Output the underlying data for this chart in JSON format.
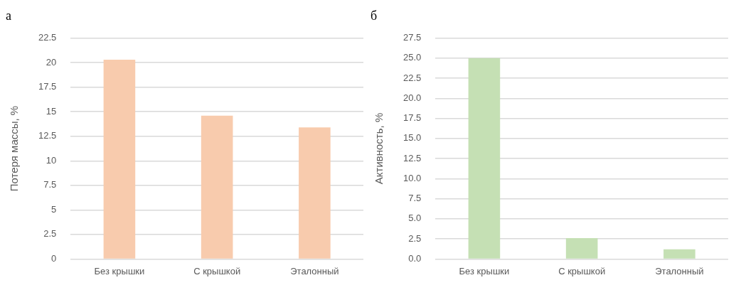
{
  "chart_data": [
    {
      "type": "bar",
      "title": "а",
      "categories": [
        "Без крышки",
        "С крышкой",
        "Эталонный"
      ],
      "values": [
        20.3,
        14.6,
        13.4
      ],
      "color": "#f8cbad",
      "ylabel": "Потеря массы, %",
      "ylim": [
        0,
        22.5
      ],
      "yticks": [
        0,
        2.5,
        5,
        7.5,
        10,
        12.5,
        15,
        17.5,
        20,
        22.5
      ],
      "grid": "y"
    },
    {
      "type": "bar",
      "title": "б",
      "categories": [
        "Без крышки",
        "С крышкой",
        "Эталонный"
      ],
      "values": [
        25.0,
        2.6,
        1.2
      ],
      "color": "#c5e0b4",
      "ylabel": "Активность, %",
      "ylim": [
        0,
        27.5
      ],
      "yticks": [
        {
          "value": 0,
          "label": "0.0"
        },
        {
          "value": 2.5,
          "label": "2.5"
        },
        {
          "value": 5,
          "label": "5.0"
        },
        {
          "value": 7.5,
          "label": "7.5"
        },
        {
          "value": 10,
          "label": "10.0"
        },
        {
          "value": 12.5,
          "label": "12.5"
        },
        {
          "value": 15,
          "label": "15.0"
        },
        {
          "value": 17.5,
          "label": "17.5"
        },
        {
          "value": 20,
          "label": "20.0"
        },
        {
          "value": 22.5,
          "label": "22.5"
        },
        {
          "value": 25,
          "label": "25.0"
        },
        {
          "value": 27.5,
          "label": "27.5"
        }
      ],
      "grid": "y"
    }
  ]
}
